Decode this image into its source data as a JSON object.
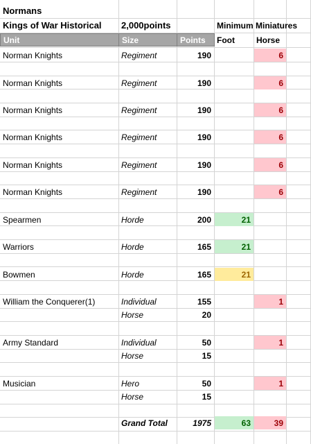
{
  "sheet": {
    "title": "Normans",
    "subtitle_left": "Kings of War Historical",
    "subtitle_points": "2,000points",
    "min_header": "Minimum Miniatures",
    "columns": {
      "unit": "Unit",
      "size": "Size",
      "points": "Points",
      "foot": "Foot",
      "horse": "Horse"
    }
  },
  "rows": [
    {
      "unit": "Norman Knights",
      "size": "Regiment",
      "points": "190",
      "foot": "",
      "horse": "6"
    },
    {
      "unit": "Norman Knights",
      "size": "Regiment",
      "points": "190",
      "foot": "",
      "horse": "6"
    },
    {
      "unit": "Norman Knights",
      "size": "Regiment",
      "points": "190",
      "foot": "",
      "horse": "6"
    },
    {
      "unit": "Norman Knights",
      "size": "Regiment",
      "points": "190",
      "foot": "",
      "horse": "6"
    },
    {
      "unit": "Norman Knights",
      "size": "Regiment",
      "points": "190",
      "foot": "",
      "horse": "6"
    },
    {
      "unit": "Norman Knights",
      "size": "Regiment",
      "points": "190",
      "foot": "",
      "horse": "6"
    },
    {
      "unit": "Spearmen",
      "size": "Horde",
      "points": "200",
      "foot": "21",
      "horse": ""
    },
    {
      "unit": "Warriors",
      "size": "Horde",
      "points": "165",
      "foot": "21",
      "horse": ""
    },
    {
      "unit": "Bowmen",
      "size": "Horde",
      "points": "165",
      "foot": "21",
      "horse": ""
    },
    {
      "unit": "William the Conquerer(1)",
      "size": "Individual",
      "points": "155",
      "foot": "",
      "horse": "1"
    },
    {
      "unit": "",
      "size": "Horse",
      "points": "20",
      "foot": "",
      "horse": ""
    },
    {
      "unit": "Army Standard",
      "size": "Individual",
      "points": "50",
      "foot": "",
      "horse": "1"
    },
    {
      "unit": "",
      "size": "Horse",
      "points": "15",
      "foot": "",
      "horse": ""
    },
    {
      "unit": "Musician",
      "size": "Hero",
      "points": "50",
      "foot": "",
      "horse": "1"
    },
    {
      "unit": "",
      "size": "Horse",
      "points": "15",
      "foot": "",
      "horse": ""
    }
  ],
  "total": {
    "label": "Grand Total",
    "points": "1975",
    "foot": "63",
    "horse": "39"
  },
  "colors": {
    "header_fill": "#a6a6a6",
    "red_fill": "#ffc7ce",
    "red_text": "#9c0006",
    "green_fill": "#c6efce",
    "green_text": "#006100",
    "yellow_fill": "#ffeb9c",
    "yellow_text": "#9c6500"
  }
}
